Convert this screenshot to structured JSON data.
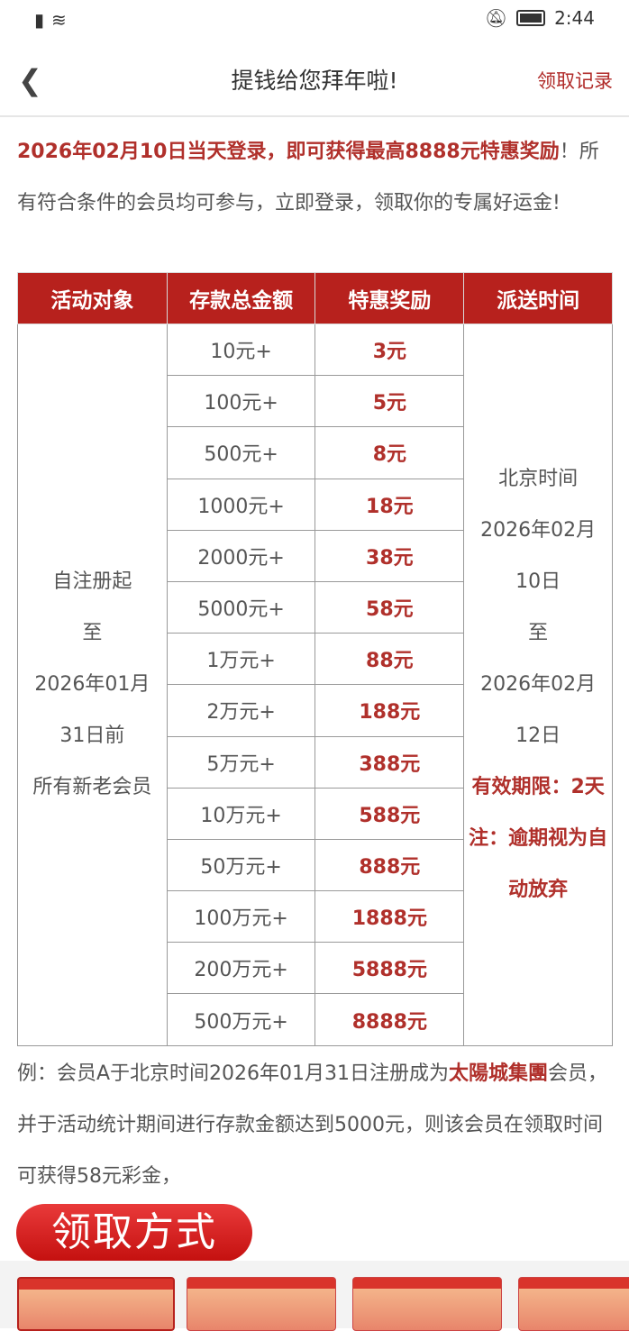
{
  "status_bar": {
    "time": "2:44"
  },
  "nav": {
    "title": "提钱给您拜年啦!",
    "records": "领取记录"
  },
  "intro": {
    "highlight": "2026年02月10日当天登录，即可获得最高8888元特惠奖励",
    "text": "！所有符合条件的会员均可参与，立即登录，领取你的专属好运金!"
  },
  "table": {
    "headers": [
      "活动对象",
      "存款总金额",
      "特惠奖励",
      "派送时间"
    ],
    "eligibility": [
      "自注册起",
      "至",
      "2026年01月",
      "31日前",
      "所有新老会员"
    ],
    "rows": [
      {
        "deposit": "10元+",
        "reward": "3元"
      },
      {
        "deposit": "100元+",
        "reward": "5元"
      },
      {
        "deposit": "500元+",
        "reward": "8元"
      },
      {
        "deposit": "1000元+",
        "reward": "18元"
      },
      {
        "deposit": "2000元+",
        "reward": "38元"
      },
      {
        "deposit": "5000元+",
        "reward": "58元"
      },
      {
        "deposit": "1万元+",
        "reward": "88元"
      },
      {
        "deposit": "2万元+",
        "reward": "188元"
      },
      {
        "deposit": "5万元+",
        "reward": "388元"
      },
      {
        "deposit": "10万元+",
        "reward": "588元"
      },
      {
        "deposit": "50万元+",
        "reward": "888元"
      },
      {
        "deposit": "100万元+",
        "reward": "1888元"
      },
      {
        "deposit": "200万元+",
        "reward": "5888元"
      },
      {
        "deposit": "500万元+",
        "reward": "8888元"
      }
    ],
    "timing": [
      "北京时间",
      "2026年02月",
      "10日",
      "至",
      "2026年02月",
      "12日"
    ],
    "timing_notes": [
      "有效期限：2天",
      "注：逾期视为自动放弃"
    ]
  },
  "example": {
    "prefix": "例：会员A于北京时间2026年01月31日注册成为",
    "brand": "太陽城集團",
    "suffix": "会员，并于活动统计期间进行存款金额达到5000元，则该会员在领取时间可获得58元彩金，"
  },
  "claim_button": "领取方式",
  "colors": {
    "accent": "#b7211d",
    "text_red": "#b0302b"
  }
}
